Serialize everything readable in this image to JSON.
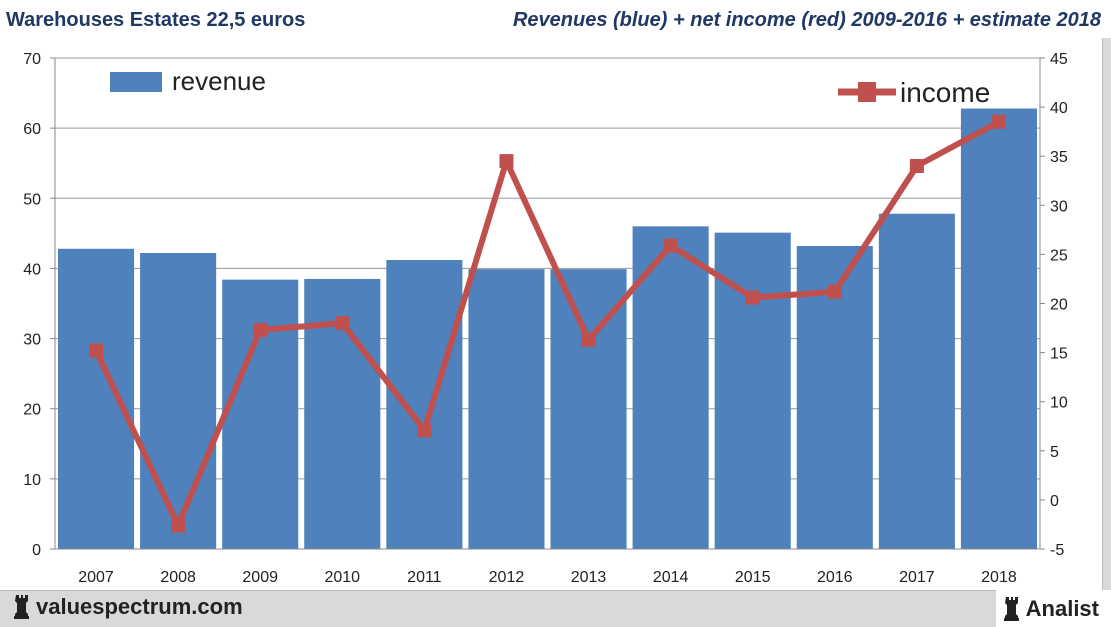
{
  "header": {
    "title": "Warehouses Estates 22,5 euros",
    "subtitle": "Revenues (blue) + net income (red) 2009-2016 + estimate 2018"
  },
  "footer": {
    "site": "valuespectrum.com",
    "brand": "Analist",
    "logo_icon": "chess-rook-icon"
  },
  "chart_data": {
    "type": "bar+line",
    "categories": [
      "2007",
      "2008",
      "2009",
      "2010",
      "2011",
      "2012",
      "2013",
      "2014",
      "2015",
      "2016",
      "2017",
      "2018"
    ],
    "series": [
      {
        "name": "revenue",
        "type": "bar",
        "axis": "left",
        "color": "#4f81bd",
        "values": [
          42.8,
          42.2,
          38.4,
          38.5,
          41.2,
          39.9,
          39.9,
          46.0,
          45.1,
          43.2,
          47.8,
          62.8
        ]
      },
      {
        "name": "income",
        "type": "line",
        "axis": "right",
        "color": "#c0504d",
        "values": [
          15.2,
          -2.6,
          17.3,
          18.0,
          7.1,
          34.5,
          16.3,
          25.9,
          20.6,
          21.2,
          34.0,
          38.5
        ]
      }
    ],
    "y_left": {
      "min": 0,
      "max": 70,
      "ticks": [
        0,
        10,
        20,
        30,
        40,
        50,
        60,
        70
      ]
    },
    "y_right": {
      "min": -5,
      "max": 45,
      "ticks": [
        -5,
        0,
        5,
        10,
        15,
        20,
        25,
        30,
        35,
        40,
        45
      ]
    },
    "grid": true,
    "legend": [
      {
        "label": "revenue",
        "placement": "top-left"
      },
      {
        "label": "income",
        "placement": "top-right"
      }
    ]
  }
}
